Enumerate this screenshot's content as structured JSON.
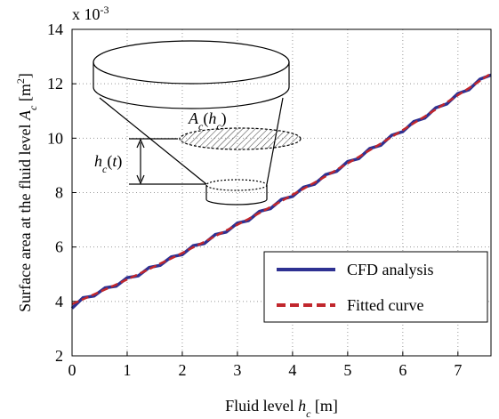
{
  "chart_data": {
    "type": "line",
    "multiplier": [
      {
        "text": "x 10"
      },
      {
        "text": "-3",
        "sup": true
      }
    ],
    "xlabel": [
      {
        "text": "Fluid level "
      },
      {
        "text": "h",
        "italic": true
      },
      {
        "text": "c",
        "sub": true,
        "italic": true
      },
      {
        "text": " [m]"
      }
    ],
    "ylabel": [
      {
        "text": "Surface area at the fluid level "
      },
      {
        "text": "A",
        "italic": true
      },
      {
        "text": "c",
        "sub": true,
        "italic": true
      },
      {
        "text": " [m"
      },
      {
        "text": "2",
        "sup": true
      },
      {
        "text": "]"
      }
    ],
    "annotations": [
      [
        {
          "text": "A",
          "italic": true
        },
        {
          "text": "c",
          "sub": true,
          "italic": true
        },
        {
          "text": "("
        },
        {
          "text": "h",
          "italic": true
        },
        {
          "text": "c",
          "sub": true,
          "italic": true
        },
        {
          "text": ")"
        }
      ],
      [
        {
          "text": "h",
          "italic": true
        },
        {
          "text": "c",
          "sub": true,
          "italic": true
        },
        {
          "text": "("
        },
        {
          "text": "t",
          "italic": true
        },
        {
          "text": ")"
        }
      ]
    ],
    "x": [
      0,
      0.2,
      0.4,
      0.6,
      0.8,
      1.0,
      1.2,
      1.4,
      1.6,
      1.8,
      2.0,
      2.2,
      2.4,
      2.6,
      2.8,
      3.0,
      3.2,
      3.4,
      3.6,
      3.8,
      4.0,
      4.2,
      4.4,
      4.6,
      4.8,
      5.0,
      5.2,
      5.4,
      5.6,
      5.8,
      6.0,
      6.2,
      6.4,
      6.6,
      6.8,
      7.0,
      7.2,
      7.4,
      7.6
    ],
    "series": [
      {
        "name": "CFD analysis",
        "color": "#2e3192",
        "dashed": false,
        "values": [
          3.75,
          4.14,
          4.2,
          4.5,
          4.56,
          4.87,
          4.94,
          5.25,
          5.33,
          5.64,
          5.72,
          6.05,
          6.13,
          6.46,
          6.55,
          6.88,
          6.97,
          7.31,
          7.41,
          7.75,
          7.86,
          8.2,
          8.31,
          8.66,
          8.78,
          9.14,
          9.25,
          9.62,
          9.74,
          10.11,
          10.24,
          10.61,
          10.74,
          11.12,
          11.26,
          11.64,
          11.78,
          12.17,
          12.32
        ]
      },
      {
        "name": "Fitted curve",
        "color": "#c1272d",
        "dashed": true,
        "values": [
          3.9,
          4.08,
          4.26,
          4.44,
          4.62,
          4.81,
          5.0,
          5.19,
          5.39,
          5.58,
          5.78,
          5.99,
          6.19,
          6.4,
          6.61,
          6.82,
          7.03,
          7.25,
          7.47,
          7.69,
          7.92,
          8.14,
          8.37,
          8.6,
          8.84,
          9.08,
          9.31,
          9.56,
          9.8,
          10.05,
          10.3,
          10.55,
          10.8,
          11.06,
          11.32,
          11.58,
          11.84,
          12.11,
          12.38
        ]
      }
    ],
    "xlim": [
      0,
      7.6
    ],
    "ylim": [
      2,
      14
    ],
    "xticks": [
      0,
      1,
      2,
      3,
      4,
      5,
      6,
      7
    ],
    "yticks": [
      2,
      4,
      6,
      8,
      10,
      12,
      14
    ],
    "grid": true,
    "legend": "lower right"
  }
}
